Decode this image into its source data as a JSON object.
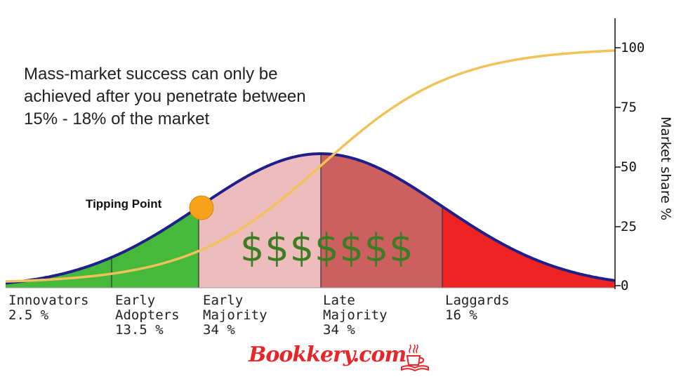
{
  "note": {
    "line1": "Mass-market success can only be",
    "line2": "achieved after you penetrate between",
    "line3": "15% - 18% of the market"
  },
  "tipping_point_label": "Tipping Point",
  "money_label": "$$$$$$$",
  "brand_text": "Bookkery.com",
  "right_axis": {
    "title": "Market share %",
    "ticks": [
      "100",
      "75",
      "50",
      "25",
      "0"
    ]
  },
  "segments": [
    {
      "lines": [
        "Innovators",
        "2.5 %"
      ],
      "color": "#47b93a"
    },
    {
      "lines": [
        "Early",
        "Adopters",
        "13.5 %"
      ],
      "color": "#47b93a"
    },
    {
      "lines": [
        "Early",
        "Majority",
        "34 %"
      ],
      "color": "#eebcbc"
    },
    {
      "lines": [
        "Late",
        "Majority",
        "34 %"
      ],
      "color": "#cd5f5f"
    },
    {
      "lines": [
        "Laggards",
        "16 %"
      ],
      "color": "#ee2424"
    }
  ],
  "colors": {
    "bell_outline": "#1f1f8c",
    "s_curve": "#f1c25b",
    "tipping_marker": "#f7a21a",
    "money": "#3a7d22",
    "brand": "#e8262a"
  }
}
